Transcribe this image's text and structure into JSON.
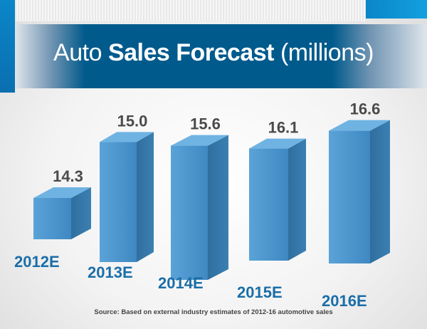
{
  "title": {
    "prefix": "Auto",
    "bold": "Sales Forecast",
    "suffix": "(millions)"
  },
  "source": "Source:  Based on external industry estimates of 2012-16 automotive sales",
  "colors": {
    "band": "#005a8c",
    "bar_front": "#4f97cf",
    "category_text": "#1b6ea8",
    "value_text": "#4a4a4a"
  },
  "chart_data": {
    "type": "bar",
    "title": "Auto Sales Forecast (millions)",
    "categories": [
      "2012E",
      "2013E",
      "2014E",
      "2015E",
      "2016E"
    ],
    "values": [
      14.3,
      15.0,
      15.6,
      16.1,
      16.6
    ],
    "value_labels": [
      "14.3",
      "15.0",
      "15.6",
      "16.1",
      "16.6"
    ],
    "xlabel": "",
    "ylabel": "",
    "grid": false
  }
}
